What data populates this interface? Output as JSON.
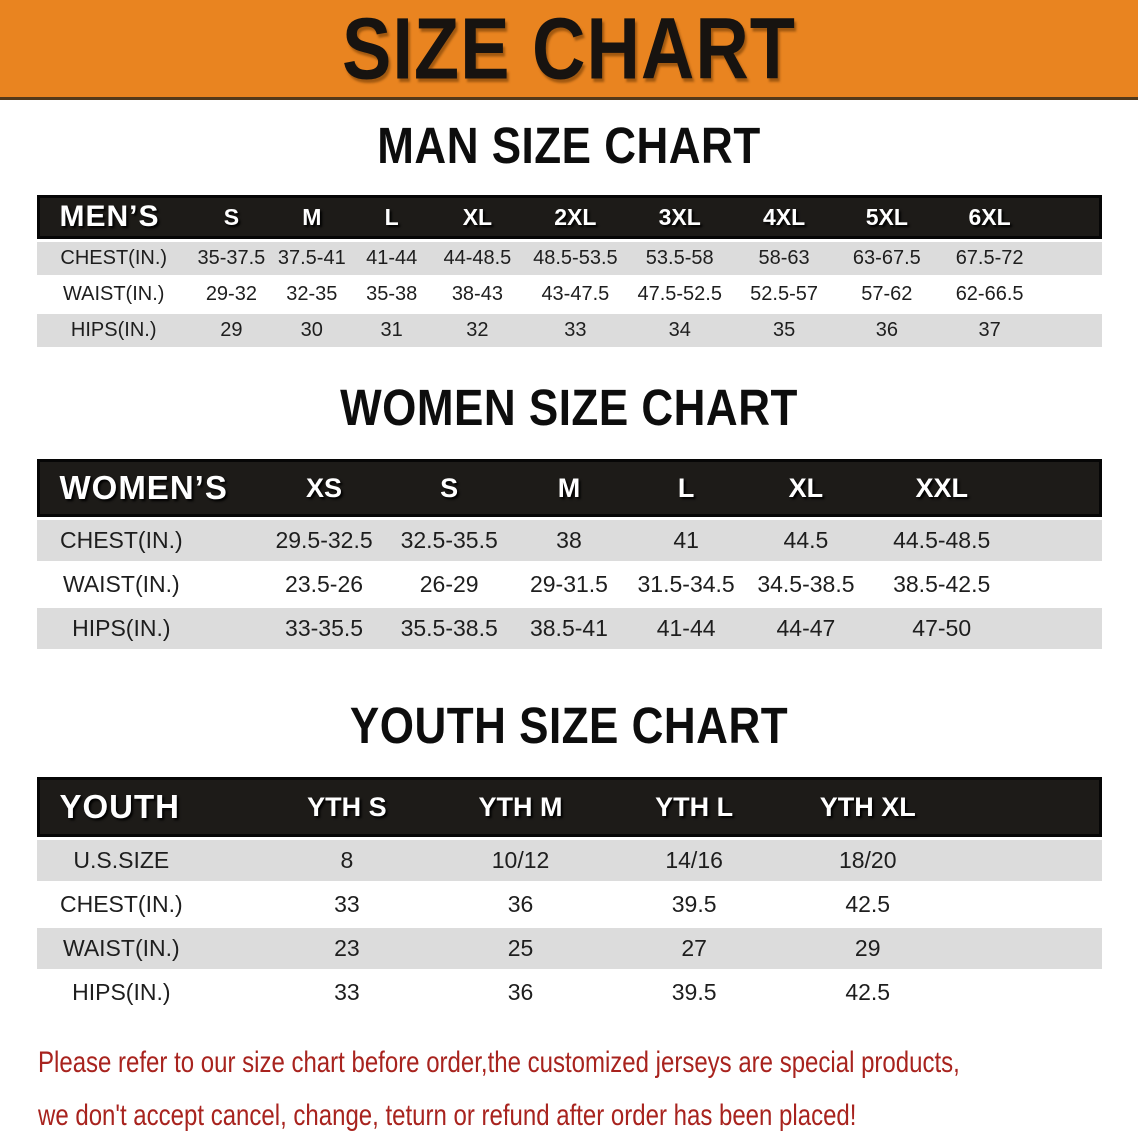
{
  "banner": {
    "title": "SIZE CHART"
  },
  "theme": {
    "accent_orange": "#E98420",
    "table_header_black": "#1D1B18",
    "row_gray": "#DCDCDC",
    "disclaimer_red": "#A8231E"
  },
  "sections": [
    {
      "id": "men",
      "title": "MAN SIZE CHART",
      "group_label": "MEN’S",
      "columns": [
        "S",
        "M",
        "L",
        "XL",
        "2XL",
        "3XL",
        "4XL",
        "5XL",
        "6XL"
      ],
      "rows": [
        {
          "label": "CHEST(IN.)",
          "values": [
            "35-37.5",
            "37.5-41",
            "41-44",
            "44-48.5",
            "48.5-53.5",
            "53.5-58",
            "58-63",
            "63-67.5",
            "67.5-72"
          ]
        },
        {
          "label": "WAIST(IN.)",
          "values": [
            "29-32",
            "32-35",
            "35-38",
            "38-43",
            "43-47.5",
            "47.5-52.5",
            "52.5-57",
            "57-62",
            "62-66.5"
          ]
        },
        {
          "label": "HIPS(IN.)",
          "values": [
            "29",
            "30",
            "31",
            "32",
            "33",
            "34",
            "35",
            "36",
            "37"
          ]
        }
      ]
    },
    {
      "id": "women",
      "title": "WOMEN SIZE CHART",
      "group_label": "WOMEN’S",
      "columns": [
        "XS",
        "S",
        "M",
        "L",
        "XL",
        "XXL"
      ],
      "rows": [
        {
          "label": "CHEST(IN.)",
          "values": [
            "29.5-32.5",
            "32.5-35.5",
            "38",
            "41",
            "44.5",
            "44.5-48.5"
          ]
        },
        {
          "label": "WAIST(IN.)",
          "values": [
            "23.5-26",
            "26-29",
            "29-31.5",
            "31.5-34.5",
            "34.5-38.5",
            "38.5-42.5"
          ]
        },
        {
          "label": "HIPS(IN.)",
          "values": [
            "33-35.5",
            "35.5-38.5",
            "38.5-41",
            "41-44",
            "44-47",
            "47-50"
          ]
        }
      ]
    },
    {
      "id": "youth",
      "title": "YOUTH SIZE CHART",
      "group_label": "YOUTH",
      "columns": [
        "YTH S",
        "YTH M",
        "YTH L",
        "YTH XL"
      ],
      "rows": [
        {
          "label": "U.S.SIZE",
          "values": [
            "8",
            "10/12",
            "14/16",
            "18/20"
          ]
        },
        {
          "label": "CHEST(IN.)",
          "values": [
            "33",
            "36",
            "39.5",
            "42.5"
          ]
        },
        {
          "label": "WAIST(IN.)",
          "values": [
            "23",
            "25",
            "27",
            "29"
          ]
        },
        {
          "label": "HIPS(IN.)",
          "values": [
            "33",
            "36",
            "39.5",
            "42.5"
          ]
        }
      ]
    }
  ],
  "disclaimer": {
    "line1": "Please refer to our size chart before order,the customized jerseys are special products,",
    "line2": "we don't accept cancel, change, teturn or refund after order has been placed!"
  }
}
